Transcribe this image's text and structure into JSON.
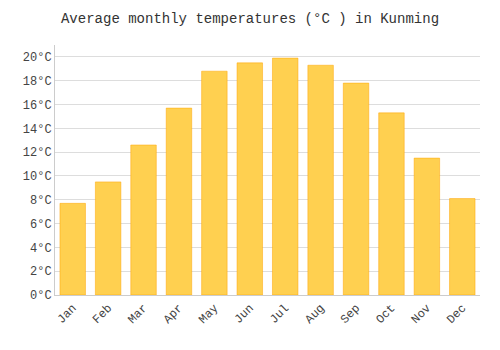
{
  "chart_data": {
    "type": "bar",
    "title": "Average monthly temperatures (°C ) in Kunming",
    "categories": [
      "Jan",
      "Feb",
      "Mar",
      "Apr",
      "May",
      "Jun",
      "Jul",
      "Aug",
      "Sep",
      "Oct",
      "Nov",
      "Dec"
    ],
    "values": [
      7.7,
      9.5,
      12.6,
      15.7,
      18.8,
      19.5,
      19.9,
      19.3,
      17.8,
      15.3,
      11.5,
      8.1
    ],
    "color": "#FFD050",
    "ylim": [
      0,
      21
    ],
    "yticks": [
      {
        "value": 0,
        "label": "0°C"
      },
      {
        "value": 2,
        "label": "2°C"
      },
      {
        "value": 4,
        "label": "4°C"
      },
      {
        "value": 6,
        "label": "6°C"
      },
      {
        "value": 8,
        "label": "8°C"
      },
      {
        "value": 10,
        "label": "10°C"
      },
      {
        "value": 12,
        "label": "12°C"
      },
      {
        "value": 14,
        "label": "14°C"
      },
      {
        "value": 16,
        "label": "16°C"
      },
      {
        "value": 18,
        "label": "18°C"
      },
      {
        "value": 20,
        "label": "20°C"
      }
    ],
    "grid": true
  }
}
